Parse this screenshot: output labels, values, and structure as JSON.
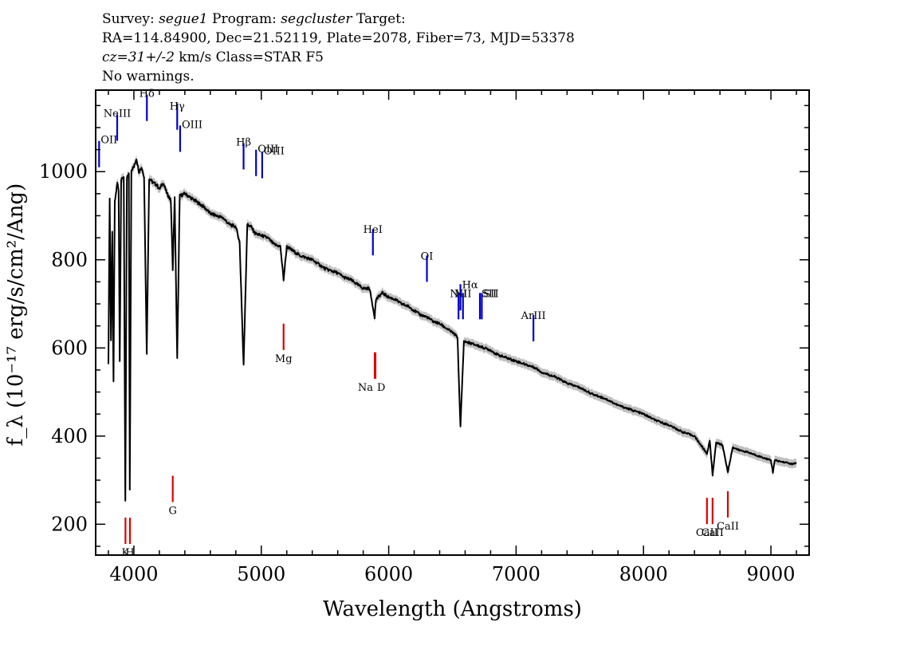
{
  "header": {
    "line1": {
      "survey_label": "Survey: ",
      "survey": "segue1",
      "program_label": " Program: ",
      "program": "segcluster",
      "target_label": " Target:"
    },
    "line2": "RA=114.84900, Dec=21.52119, Plate=2078, Fiber=73, MJD=53378",
    "line3": {
      "cz": "cz=31+/-2",
      "rest": " km/s Class=STAR F5"
    },
    "line4": "No warnings."
  },
  "colors": {
    "spectrum": "#000000",
    "error_band": "#c0c0c0",
    "emission": "#0000cc",
    "absorption": "#dd0000",
    "axes": "#000000"
  },
  "chart_data": {
    "type": "line",
    "xlabel": "Wavelength (Angstroms)",
    "ylabel": "f_λ (10⁻¹⁷ erg/s/cm²/Ang)",
    "xlim": [
      3700,
      9300
    ],
    "ylim": [
      130,
      1185
    ],
    "x_ticks": [
      4000,
      5000,
      6000,
      7000,
      8000,
      9000
    ],
    "y_ticks": [
      200,
      400,
      600,
      800,
      1000
    ],
    "grid": false,
    "series": [
      {
        "points": [
          [
            3800,
            560
          ],
          [
            3810,
            940
          ],
          [
            3820,
            620
          ],
          [
            3830,
            860
          ],
          [
            3840,
            520
          ],
          [
            3850,
            930
          ],
          [
            3870,
            975
          ],
          [
            3880,
            960
          ],
          [
            3889,
            570
          ],
          [
            3900,
            980
          ],
          [
            3920,
            990
          ],
          [
            3933,
            250
          ],
          [
            3945,
            985
          ],
          [
            3960,
            995
          ],
          [
            3968,
            280
          ],
          [
            3980,
            1005
          ],
          [
            4000,
            1010
          ],
          [
            4020,
            1030
          ],
          [
            4040,
            1000
          ],
          [
            4060,
            1010
          ],
          [
            4080,
            990
          ],
          [
            4101,
            590
          ],
          [
            4120,
            985
          ],
          [
            4150,
            975
          ],
          [
            4180,
            970
          ],
          [
            4200,
            960
          ],
          [
            4230,
            975
          ],
          [
            4260,
            950
          ],
          [
            4290,
            935
          ],
          [
            4305,
            780
          ],
          [
            4320,
            940
          ],
          [
            4340,
            575
          ],
          [
            4360,
            945
          ],
          [
            4400,
            950
          ],
          [
            4450,
            940
          ],
          [
            4500,
            930
          ],
          [
            4550,
            920
          ],
          [
            4600,
            905
          ],
          [
            4650,
            900
          ],
          [
            4700,
            895
          ],
          [
            4750,
            880
          ],
          [
            4800,
            875
          ],
          [
            4830,
            840
          ],
          [
            4861,
            560
          ],
          [
            4890,
            880
          ],
          [
            4920,
            875
          ],
          [
            4950,
            860
          ],
          [
            5000,
            855
          ],
          [
            5050,
            850
          ],
          [
            5100,
            835
          ],
          [
            5150,
            830
          ],
          [
            5175,
            755
          ],
          [
            5200,
            830
          ],
          [
            5250,
            820
          ],
          [
            5300,
            810
          ],
          [
            5350,
            805
          ],
          [
            5400,
            800
          ],
          [
            5450,
            790
          ],
          [
            5500,
            780
          ],
          [
            5550,
            775
          ],
          [
            5600,
            770
          ],
          [
            5650,
            760
          ],
          [
            5700,
            755
          ],
          [
            5750,
            745
          ],
          [
            5800,
            735
          ],
          [
            5850,
            735
          ],
          [
            5890,
            670
          ],
          [
            5900,
            710
          ],
          [
            5950,
            725
          ],
          [
            6000,
            715
          ],
          [
            6050,
            710
          ],
          [
            6100,
            700
          ],
          [
            6150,
            695
          ],
          [
            6200,
            685
          ],
          [
            6250,
            675
          ],
          [
            6300,
            670
          ],
          [
            6350,
            660
          ],
          [
            6400,
            655
          ],
          [
            6450,
            645
          ],
          [
            6500,
            635
          ],
          [
            6540,
            625
          ],
          [
            6563,
            420
          ],
          [
            6590,
            615
          ],
          [
            6650,
            610
          ],
          [
            6700,
            605
          ],
          [
            6750,
            600
          ],
          [
            6800,
            595
          ],
          [
            6850,
            585
          ],
          [
            6900,
            580
          ],
          [
            6950,
            575
          ],
          [
            7000,
            570
          ],
          [
            7050,
            565
          ],
          [
            7100,
            560
          ],
          [
            7150,
            555
          ],
          [
            7200,
            545
          ],
          [
            7300,
            535
          ],
          [
            7400,
            520
          ],
          [
            7500,
            510
          ],
          [
            7600,
            495
          ],
          [
            7700,
            485
          ],
          [
            7800,
            470
          ],
          [
            7900,
            460
          ],
          [
            8000,
            450
          ],
          [
            8100,
            435
          ],
          [
            8200,
            425
          ],
          [
            8300,
            410
          ],
          [
            8400,
            400
          ],
          [
            8498,
            360
          ],
          [
            8520,
            390
          ],
          [
            8542,
            312
          ],
          [
            8570,
            385
          ],
          [
            8620,
            380
          ],
          [
            8662,
            318
          ],
          [
            8700,
            375
          ],
          [
            8750,
            368
          ],
          [
            8800,
            365
          ],
          [
            8850,
            360
          ],
          [
            8900,
            355
          ],
          [
            8950,
            350
          ],
          [
            9000,
            345
          ],
          [
            9015,
            318
          ],
          [
            9030,
            345
          ],
          [
            9080,
            342
          ],
          [
            9120,
            340
          ],
          [
            9170,
            336
          ],
          [
            9200,
            340
          ]
        ]
      }
    ],
    "emission_lines": [
      {
        "label": "OII",
        "wavelength": 3727,
        "flux": 1010,
        "label_offset_y": -30,
        "anchor": "start"
      },
      {
        "label": "NeIII",
        "wavelength": 3869,
        "flux": 1070,
        "label_offset_y": -30,
        "anchor": "middle"
      },
      {
        "label": "Hδ",
        "wavelength": 4102,
        "flux": 1115,
        "label_offset_y": -30,
        "anchor": "middle"
      },
      {
        "label": "Hγ",
        "wavelength": 4340,
        "flux": 1095,
        "label_offset_y": -25,
        "anchor": "middle"
      },
      {
        "label": "OIII",
        "wavelength": 4363,
        "flux": 1045,
        "label_offset_y": -30,
        "anchor": "start"
      },
      {
        "label": "Hβ",
        "wavelength": 4861,
        "flux": 1005,
        "label_offset_y": -30,
        "anchor": "middle"
      },
      {
        "label": "OIII",
        "wavelength": 4959,
        "flux": 990,
        "label_offset_y": -30,
        "anchor": "start"
      },
      {
        "label": "OIII",
        "wavelength": 5007,
        "flux": 985,
        "label_offset_y": -30,
        "anchor": "start"
      },
      {
        "label": "HeI",
        "wavelength": 5876,
        "flux": 810,
        "label_offset_y": -28,
        "anchor": "middle"
      },
      {
        "label": "OI",
        "wavelength": 6300,
        "flux": 750,
        "label_offset_y": -28,
        "anchor": "middle"
      },
      {
        "label": "NII",
        "wavelength": 6548,
        "flux": 665,
        "label_offset_y": -28,
        "anchor": "middle"
      },
      {
        "label": "Hα",
        "wavelength": 6563,
        "flux": 685,
        "label_offset_y": -28,
        "anchor": "start"
      },
      {
        "label": "NII",
        "wavelength": 6583,
        "flux": 665,
        "label_offset_y": -28,
        "anchor": "middle"
      },
      {
        "label": "SII",
        "wavelength": 6716,
        "flux": 665,
        "label_offset_y": -28,
        "anchor": "start"
      },
      {
        "label": "SII",
        "wavelength": 6731,
        "flux": 665,
        "label_offset_y": -28,
        "anchor": "start"
      },
      {
        "label": "ArIII",
        "wavelength": 7136,
        "flux": 615,
        "label_offset_y": -28,
        "anchor": "middle"
      }
    ],
    "absorption_lines": [
      {
        "label": "K",
        "wavelength": 3934,
        "flux": 215,
        "label_offset_y": 48,
        "anchor": "middle"
      },
      {
        "label": "H",
        "wavelength": 3969,
        "flux": 215,
        "label_offset_y": 48,
        "anchor": "middle"
      },
      {
        "label": "G",
        "wavelength": 4305,
        "flux": 310,
        "label_offset_y": 48,
        "anchor": "middle"
      },
      {
        "label": "Mg",
        "wavelength": 5175,
        "flux": 655,
        "label_offset_y": 48,
        "anchor": "middle"
      },
      {
        "label": "Na",
        "wavelength": 5890,
        "flux": 590,
        "label_offset_y": 48,
        "anchor": "end"
      },
      {
        "label": "D",
        "wavelength": 5896,
        "flux": 590,
        "label_offset_y": 48,
        "anchor": "start"
      },
      {
        "label": "CaII",
        "wavelength": 8498,
        "flux": 260,
        "label_offset_y": 48,
        "anchor": "middle"
      },
      {
        "label": "CaII",
        "wavelength": 8542,
        "flux": 260,
        "label_offset_y": 48,
        "anchor": "middle"
      },
      {
        "label": "CaII",
        "wavelength": 8662,
        "flux": 275,
        "label_offset_y": 48,
        "anchor": "middle"
      }
    ]
  }
}
